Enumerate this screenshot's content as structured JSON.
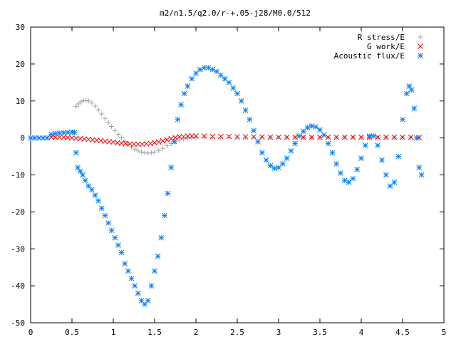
{
  "chart_data": {
    "type": "scatter",
    "title": "m2/n1.5/q2.0/r-+.05-j28/M0.0/512",
    "xlabel": "",
    "ylabel": "",
    "xlim": [
      0,
      5
    ],
    "ylim": [
      -50,
      30
    ],
    "x_ticks": [
      "0",
      "0.5",
      "1",
      "1.5",
      "2",
      "2.5",
      "3",
      "3.5",
      "4",
      "4.5",
      "5"
    ],
    "y_ticks": [
      "-50",
      "-40",
      "-30",
      "-20",
      "-10",
      "0",
      "10",
      "20",
      "30"
    ],
    "grid": false,
    "legend_position": "top-right",
    "series": [
      {
        "name": "R stress/E",
        "marker": "+",
        "color": "#a0a0a0",
        "points": [
          [
            0.55,
            8.5
          ],
          [
            0.58,
            9.2
          ],
          [
            0.61,
            9.8
          ],
          [
            0.64,
            10.1
          ],
          [
            0.67,
            10.2
          ],
          [
            0.7,
            10.0
          ],
          [
            0.74,
            9.5
          ],
          [
            0.78,
            8.6
          ],
          [
            0.82,
            7.6
          ],
          [
            0.86,
            6.5
          ],
          [
            0.9,
            5.3
          ],
          [
            0.94,
            4.2
          ],
          [
            0.98,
            3.1
          ],
          [
            1.02,
            2.0
          ],
          [
            1.06,
            1.0
          ],
          [
            1.1,
            0.0
          ],
          [
            1.14,
            -0.9
          ],
          [
            1.18,
            -1.7
          ],
          [
            1.22,
            -2.4
          ],
          [
            1.26,
            -3.0
          ],
          [
            1.3,
            -3.5
          ],
          [
            1.34,
            -3.8
          ],
          [
            1.38,
            -4.0
          ],
          [
            1.42,
            -4.1
          ],
          [
            1.46,
            -4.0
          ],
          [
            1.5,
            -3.8
          ],
          [
            1.55,
            -3.4
          ],
          [
            1.6,
            -2.8
          ],
          [
            1.65,
            -2.1
          ],
          [
            1.7,
            -1.5
          ],
          [
            1.75,
            -1.0
          ],
          [
            1.8,
            -0.6
          ],
          [
            1.85,
            -0.3
          ],
          [
            1.9,
            -0.1
          ],
          [
            1.95,
            0.0
          ],
          [
            2.0,
            0.1
          ],
          [
            2.1,
            0.1
          ],
          [
            2.2,
            0.1
          ],
          [
            2.3,
            0.1
          ],
          [
            2.4,
            0.1
          ],
          [
            2.5,
            0.1
          ],
          [
            2.6,
            0.1
          ],
          [
            2.7,
            0.1
          ],
          [
            2.8,
            0.1
          ],
          [
            2.9,
            0.1
          ],
          [
            3.0,
            0.1
          ],
          [
            3.1,
            0.1
          ],
          [
            3.2,
            0.1
          ],
          [
            3.3,
            0.1
          ],
          [
            3.4,
            0.1
          ],
          [
            3.5,
            0.1
          ],
          [
            3.6,
            0.1
          ],
          [
            3.7,
            0.1
          ],
          [
            3.8,
            0.1
          ],
          [
            3.9,
            0.1
          ],
          [
            4.0,
            0.1
          ],
          [
            4.1,
            0.1
          ],
          [
            4.2,
            0.1
          ],
          [
            4.3,
            0.1
          ],
          [
            4.4,
            0.1
          ],
          [
            4.5,
            0.1
          ],
          [
            4.6,
            0.1
          ],
          [
            4.7,
            0.1
          ]
        ]
      },
      {
        "name": "G work/E",
        "marker": "x",
        "color": "#ff0000",
        "points": [
          [
            0.25,
            0.2
          ],
          [
            0.3,
            0.2
          ],
          [
            0.35,
            0.2
          ],
          [
            0.4,
            0.2
          ],
          [
            0.45,
            0.1
          ],
          [
            0.5,
            0.0
          ],
          [
            0.55,
            -0.1
          ],
          [
            0.6,
            -0.2
          ],
          [
            0.65,
            -0.3
          ],
          [
            0.7,
            -0.4
          ],
          [
            0.75,
            -0.5
          ],
          [
            0.8,
            -0.6
          ],
          [
            0.85,
            -0.7
          ],
          [
            0.9,
            -0.9
          ],
          [
            0.95,
            -1.0
          ],
          [
            1.0,
            -1.1
          ],
          [
            1.05,
            -1.3
          ],
          [
            1.1,
            -1.4
          ],
          [
            1.15,
            -1.5
          ],
          [
            1.2,
            -1.6
          ],
          [
            1.25,
            -1.7
          ],
          [
            1.3,
            -1.7
          ],
          [
            1.35,
            -1.7
          ],
          [
            1.4,
            -1.6
          ],
          [
            1.45,
            -1.5
          ],
          [
            1.5,
            -1.3
          ],
          [
            1.55,
            -1.1
          ],
          [
            1.6,
            -0.8
          ],
          [
            1.65,
            -0.5
          ],
          [
            1.7,
            -0.2
          ],
          [
            1.75,
            0.1
          ],
          [
            1.8,
            0.3
          ],
          [
            1.85,
            0.4
          ],
          [
            1.9,
            0.5
          ],
          [
            1.95,
            0.5
          ],
          [
            2.0,
            0.5
          ],
          [
            2.1,
            0.5
          ],
          [
            2.2,
            0.4
          ],
          [
            2.3,
            0.4
          ],
          [
            2.4,
            0.4
          ],
          [
            2.5,
            0.3
          ],
          [
            2.6,
            0.3
          ],
          [
            2.7,
            0.3
          ],
          [
            2.8,
            0.3
          ],
          [
            2.9,
            0.2
          ],
          [
            3.0,
            0.2
          ],
          [
            3.1,
            0.2
          ],
          [
            3.2,
            0.2
          ],
          [
            3.3,
            0.2
          ],
          [
            3.4,
            0.2
          ],
          [
            3.5,
            0.2
          ],
          [
            3.6,
            0.2
          ],
          [
            3.7,
            0.2
          ],
          [
            3.8,
            0.2
          ],
          [
            3.9,
            0.2
          ],
          [
            4.0,
            0.2
          ],
          [
            4.1,
            0.2
          ],
          [
            4.2,
            0.2
          ],
          [
            4.3,
            0.2
          ],
          [
            4.4,
            0.2
          ],
          [
            4.5,
            0.2
          ],
          [
            4.6,
            0.2
          ],
          [
            4.7,
            0.1
          ]
        ]
      },
      {
        "name": "Acoustic flux/E",
        "marker": "*",
        "color": "#0080ff",
        "points": [
          [
            0.0,
            0.0
          ],
          [
            0.05,
            0.0
          ],
          [
            0.1,
            0.0
          ],
          [
            0.15,
            0.0
          ],
          [
            0.2,
            0.0
          ],
          [
            0.25,
            1.0
          ],
          [
            0.3,
            1.2
          ],
          [
            0.35,
            1.3
          ],
          [
            0.4,
            1.4
          ],
          [
            0.45,
            1.5
          ],
          [
            0.5,
            1.6
          ],
          [
            0.53,
            1.5
          ],
          [
            0.55,
            -4.0
          ],
          [
            0.57,
            -8.0
          ],
          [
            0.6,
            -9.0
          ],
          [
            0.63,
            -10.0
          ],
          [
            0.66,
            -11.5
          ],
          [
            0.7,
            -13.0
          ],
          [
            0.74,
            -14.0
          ],
          [
            0.78,
            -15.5
          ],
          [
            0.82,
            -17.0
          ],
          [
            0.86,
            -19.0
          ],
          [
            0.9,
            -21.0
          ],
          [
            0.94,
            -23.0
          ],
          [
            0.98,
            -25.0
          ],
          [
            1.02,
            -27.0
          ],
          [
            1.06,
            -29.0
          ],
          [
            1.1,
            -31.0
          ],
          [
            1.14,
            -34.0
          ],
          [
            1.18,
            -36.0
          ],
          [
            1.22,
            -38.0
          ],
          [
            1.26,
            -40.0
          ],
          [
            1.3,
            -42.0
          ],
          [
            1.34,
            -44.0
          ],
          [
            1.38,
            -45.0
          ],
          [
            1.42,
            -44.0
          ],
          [
            1.46,
            -40.0
          ],
          [
            1.5,
            -36.0
          ],
          [
            1.54,
            -32.0
          ],
          [
            1.58,
            -27.0
          ],
          [
            1.62,
            -21.0
          ],
          [
            1.66,
            -15.0
          ],
          [
            1.7,
            -8.0
          ],
          [
            1.74,
            -1.0
          ],
          [
            1.78,
            5.0
          ],
          [
            1.82,
            9.0
          ],
          [
            1.86,
            12.0
          ],
          [
            1.9,
            14.0
          ],
          [
            1.95,
            16.0
          ],
          [
            2.0,
            17.5
          ],
          [
            2.05,
            18.5
          ],
          [
            2.1,
            19.0
          ],
          [
            2.15,
            19.0
          ],
          [
            2.2,
            18.5
          ],
          [
            2.25,
            18.0
          ],
          [
            2.3,
            17.0
          ],
          [
            2.35,
            16.0
          ],
          [
            2.4,
            15.0
          ],
          [
            2.45,
            13.5
          ],
          [
            2.5,
            12.0
          ],
          [
            2.55,
            10.0
          ],
          [
            2.6,
            7.5
          ],
          [
            2.65,
            5.0
          ],
          [
            2.7,
            2.0
          ],
          [
            2.75,
            -1.0
          ],
          [
            2.8,
            -4.0
          ],
          [
            2.85,
            -6.0
          ],
          [
            2.9,
            -7.5
          ],
          [
            2.95,
            -8.2
          ],
          [
            3.0,
            -8.0
          ],
          [
            3.05,
            -7.0
          ],
          [
            3.1,
            -5.5
          ],
          [
            3.15,
            -3.5
          ],
          [
            3.2,
            -1.5
          ],
          [
            3.25,
            0.5
          ],
          [
            3.3,
            1.8
          ],
          [
            3.35,
            2.8
          ],
          [
            3.4,
            3.2
          ],
          [
            3.45,
            3.0
          ],
          [
            3.5,
            2.2
          ],
          [
            3.55,
            0.8
          ],
          [
            3.6,
            -1.5
          ],
          [
            3.65,
            -4.0
          ],
          [
            3.7,
            -7.0
          ],
          [
            3.75,
            -9.5
          ],
          [
            3.8,
            -11.5
          ],
          [
            3.85,
            -12.0
          ],
          [
            3.9,
            -11.0
          ],
          [
            3.95,
            -8.5
          ],
          [
            4.0,
            -5.5
          ],
          [
            4.05,
            -2.0
          ],
          [
            4.1,
            0.5
          ],
          [
            4.15,
            0.5
          ],
          [
            4.2,
            -2.0
          ],
          [
            4.25,
            -6.0
          ],
          [
            4.3,
            -10.0
          ],
          [
            4.35,
            -13.0
          ],
          [
            4.4,
            -12.0
          ],
          [
            4.45,
            -5.0
          ],
          [
            4.5,
            5.0
          ],
          [
            4.55,
            12.0
          ],
          [
            4.58,
            14.0
          ],
          [
            4.61,
            13.0
          ],
          [
            4.64,
            8.0
          ],
          [
            4.67,
            0.0
          ],
          [
            4.7,
            -8.0
          ],
          [
            4.73,
            -10.0
          ]
        ]
      }
    ]
  }
}
